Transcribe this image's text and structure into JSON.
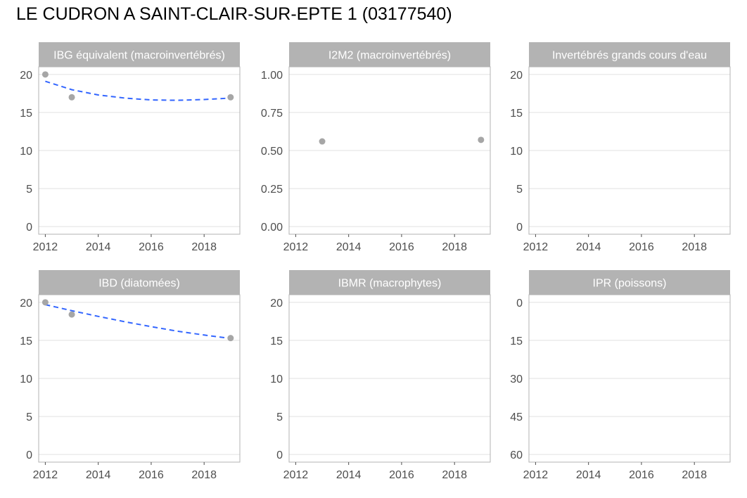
{
  "title": "LE CUDRON A SAINT-CLAIR-SUR-EPTE 1 (03177540)",
  "colors": {
    "strip": "#b3b3b3",
    "strip_text": "#ffffff",
    "grid": "#e0e0e0",
    "panel_border": "#b3b3b3",
    "point": "#a6a6a6",
    "trend": "#3366ff",
    "tick_text": "#4d4d4d"
  },
  "chart_data": [
    {
      "type": "scatter",
      "title": "IBG équivalent (macroinvertébrés)",
      "x_ticks": [
        "2012",
        "2014",
        "2016",
        "2018"
      ],
      "y_ticks": [
        "0",
        "5",
        "10",
        "15",
        "20"
      ],
      "xlim": [
        2011.75,
        2019.35
      ],
      "ylim": [
        -1,
        21
      ],
      "y_reversed": false,
      "points": [
        {
          "x": 2012,
          "y": 20
        },
        {
          "x": 2013,
          "y": 17
        },
        {
          "x": 2019,
          "y": 17
        }
      ],
      "trend": [
        {
          "x": 2012,
          "y": 19.1
        },
        {
          "x": 2013,
          "y": 18.0
        },
        {
          "x": 2014,
          "y": 17.3
        },
        {
          "x": 2015,
          "y": 16.9
        },
        {
          "x": 2016,
          "y": 16.65
        },
        {
          "x": 2017,
          "y": 16.6
        },
        {
          "x": 2018,
          "y": 16.7
        },
        {
          "x": 2019,
          "y": 16.9
        }
      ]
    },
    {
      "type": "scatter",
      "title": "I2M2 (macroinvertébrés)",
      "x_ticks": [
        "2012",
        "2014",
        "2016",
        "2018"
      ],
      "y_ticks": [
        "0.00",
        "0.25",
        "0.50",
        "0.75",
        "1.00"
      ],
      "xlim": [
        2011.75,
        2019.35
      ],
      "ylim": [
        -0.05,
        1.05
      ],
      "y_reversed": false,
      "points": [
        {
          "x": 2013,
          "y": 0.56
        },
        {
          "x": 2019,
          "y": 0.57
        }
      ],
      "trend": []
    },
    {
      "type": "scatter",
      "title": "Invertébrés grands cours d'eau",
      "x_ticks": [
        "2012",
        "2014",
        "2016",
        "2018"
      ],
      "y_ticks": [
        "0",
        "5",
        "10",
        "15",
        "20"
      ],
      "xlim": [
        2011.75,
        2019.35
      ],
      "ylim": [
        -1,
        21
      ],
      "y_reversed": false,
      "points": [],
      "trend": []
    },
    {
      "type": "scatter",
      "title": "IBD (diatomées)",
      "x_ticks": [
        "2012",
        "2014",
        "2016",
        "2018"
      ],
      "y_ticks": [
        "0",
        "5",
        "10",
        "15",
        "20"
      ],
      "xlim": [
        2011.75,
        2019.35
      ],
      "ylim": [
        -1,
        21
      ],
      "y_reversed": false,
      "points": [
        {
          "x": 2012,
          "y": 20
        },
        {
          "x": 2013,
          "y": 18.4
        },
        {
          "x": 2019,
          "y": 15.3
        }
      ],
      "trend": [
        {
          "x": 2012,
          "y": 19.7
        },
        {
          "x": 2013,
          "y": 18.9
        },
        {
          "x": 2014,
          "y": 18.15
        },
        {
          "x": 2015,
          "y": 17.45
        },
        {
          "x": 2016,
          "y": 16.8
        },
        {
          "x": 2017,
          "y": 16.2
        },
        {
          "x": 2018,
          "y": 15.7
        },
        {
          "x": 2019,
          "y": 15.25
        }
      ]
    },
    {
      "type": "scatter",
      "title": "IBMR (macrophytes)",
      "x_ticks": [
        "2012",
        "2014",
        "2016",
        "2018"
      ],
      "y_ticks": [
        "0",
        "5",
        "10",
        "15",
        "20"
      ],
      "xlim": [
        2011.75,
        2019.35
      ],
      "ylim": [
        -1,
        21
      ],
      "y_reversed": false,
      "points": [],
      "trend": []
    },
    {
      "type": "scatter",
      "title": "IPR (poissons)",
      "x_ticks": [
        "2012",
        "2014",
        "2016",
        "2018"
      ],
      "y_ticks": [
        "0",
        "15",
        "30",
        "45",
        "60"
      ],
      "xlim": [
        2011.75,
        2019.35
      ],
      "ylim": [
        -3,
        63
      ],
      "y_reversed": true,
      "points": [],
      "trend": []
    }
  ]
}
